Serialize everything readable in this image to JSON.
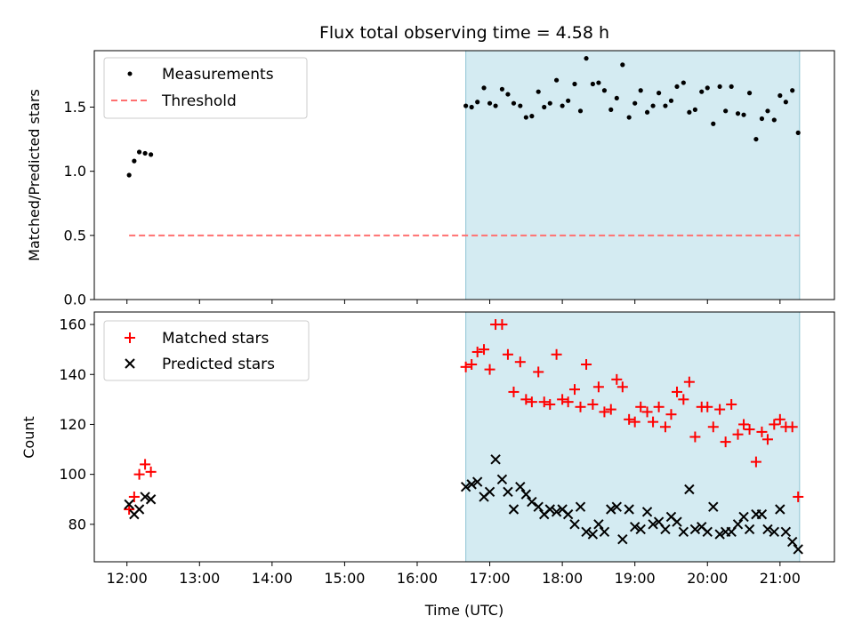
{
  "chart_data": {
    "title": "Flux total observing time = 4.58 h",
    "xlabel": "Time (UTC)",
    "x_ticks": [
      "12:00",
      "13:00",
      "14:00",
      "15:00",
      "16:00",
      "17:00",
      "18:00",
      "19:00",
      "20:00",
      "21:00"
    ],
    "xlim": [
      11.55,
      21.75
    ],
    "shaded_region": {
      "start": 16.67,
      "end": 21.27,
      "color": "#add8e6"
    },
    "top": {
      "type": "scatter",
      "ylabel": "Matched/Predicted stars",
      "ylim": [
        0,
        1.94
      ],
      "y_ticks": [
        "0.0",
        "0.5",
        "1.0",
        "1.5"
      ],
      "legend": {
        "position": "upper-left",
        "entries": [
          "Measurements",
          "Threshold"
        ]
      },
      "threshold": {
        "name": "Threshold",
        "value": 0.5,
        "x_range": [
          12.03,
          21.27
        ],
        "color": "#ff7070"
      },
      "series": [
        {
          "name": "Measurements",
          "color": "#000000",
          "x": [
            12.03,
            12.1,
            12.17,
            12.25,
            12.33,
            16.67,
            16.75,
            16.83,
            16.92,
            17.0,
            17.08,
            17.17,
            17.25,
            17.33,
            17.42,
            17.5,
            17.58,
            17.67,
            17.75,
            17.83,
            17.92,
            18.0,
            18.08,
            18.17,
            18.25,
            18.33,
            18.42,
            18.5,
            18.58,
            18.67,
            18.75,
            18.83,
            18.92,
            19.0,
            19.08,
            19.17,
            19.25,
            19.33,
            19.42,
            19.5,
            19.58,
            19.67,
            19.75,
            19.83,
            19.92,
            20.0,
            20.08,
            20.17,
            20.25,
            20.33,
            20.42,
            20.5,
            20.58,
            20.67,
            20.75,
            20.83,
            20.92,
            21.0,
            21.08,
            21.17,
            21.25
          ],
          "y": [
            0.97,
            1.08,
            1.15,
            1.14,
            1.13,
            1.51,
            1.5,
            1.54,
            1.65,
            1.53,
            1.51,
            1.64,
            1.6,
            1.53,
            1.51,
            1.42,
            1.43,
            1.62,
            1.5,
            1.53,
            1.71,
            1.51,
            1.55,
            1.68,
            1.47,
            1.88,
            1.68,
            1.69,
            1.63,
            1.48,
            1.57,
            1.83,
            1.42,
            1.53,
            1.63,
            1.46,
            1.51,
            1.61,
            1.51,
            1.55,
            1.66,
            1.69,
            1.46,
            1.48,
            1.62,
            1.65,
            1.37,
            1.66,
            1.47,
            1.66,
            1.45,
            1.44,
            1.61,
            1.25,
            1.41,
            1.47,
            1.4,
            1.59,
            1.54,
            1.63,
            1.3
          ]
        }
      ]
    },
    "bottom": {
      "type": "scatter",
      "ylabel": "Count",
      "ylim": [
        65,
        165
      ],
      "y_ticks": [
        "80",
        "100",
        "120",
        "140",
        "160"
      ],
      "legend": {
        "position": "upper-left",
        "entries": [
          "Matched stars",
          "Predicted stars"
        ]
      },
      "series": [
        {
          "name": "Matched stars",
          "color": "#ff0000",
          "marker": "plus",
          "x": [
            12.03,
            12.1,
            12.17,
            12.25,
            12.33,
            16.67,
            16.75,
            16.83,
            16.92,
            17.0,
            17.08,
            17.17,
            17.25,
            17.33,
            17.42,
            17.5,
            17.58,
            17.67,
            17.75,
            17.83,
            17.92,
            18.0,
            18.08,
            18.17,
            18.25,
            18.33,
            18.42,
            18.5,
            18.58,
            18.67,
            18.75,
            18.83,
            18.92,
            19.0,
            19.08,
            19.17,
            19.25,
            19.33,
            19.42,
            19.5,
            19.58,
            19.67,
            19.75,
            19.83,
            19.92,
            20.0,
            20.08,
            20.17,
            20.25,
            20.33,
            20.42,
            20.5,
            20.58,
            20.67,
            20.75,
            20.83,
            20.92,
            21.0,
            21.08,
            21.17,
            21.25
          ],
          "y": [
            86,
            91,
            100,
            104,
            101,
            143,
            144,
            149,
            150,
            142,
            160,
            160,
            148,
            133,
            145,
            130,
            129,
            141,
            129,
            128,
            148,
            130,
            129,
            134,
            127,
            144,
            128,
            135,
            125,
            126,
            138,
            135,
            122,
            121,
            127,
            125,
            121,
            127,
            119,
            124,
            133,
            130,
            137,
            115,
            127,
            127,
            119,
            126,
            113,
            128,
            116,
            120,
            118,
            105,
            117,
            114,
            120,
            122,
            119,
            119,
            91
          ]
        },
        {
          "name": "Predicted stars",
          "color": "#000000",
          "marker": "x",
          "x": [
            12.03,
            12.1,
            12.17,
            12.25,
            12.33,
            16.67,
            16.75,
            16.83,
            16.92,
            17.0,
            17.08,
            17.17,
            17.25,
            17.33,
            17.42,
            17.5,
            17.58,
            17.67,
            17.75,
            17.83,
            17.92,
            18.0,
            18.08,
            18.17,
            18.25,
            18.33,
            18.42,
            18.5,
            18.58,
            18.67,
            18.75,
            18.83,
            18.92,
            19.0,
            19.08,
            19.17,
            19.25,
            19.33,
            19.42,
            19.5,
            19.58,
            19.67,
            19.75,
            19.83,
            19.92,
            20.0,
            20.08,
            20.17,
            20.25,
            20.33,
            20.42,
            20.5,
            20.58,
            20.67,
            20.75,
            20.83,
            20.92,
            21.0,
            21.08,
            21.17,
            21.25
          ],
          "y": [
            88,
            84,
            86,
            91,
            90,
            95,
            96,
            97,
            91,
            93,
            106,
            98,
            93,
            86,
            95,
            92,
            89,
            87,
            84,
            86,
            85,
            86,
            84,
            80,
            87,
            77,
            76,
            80,
            77,
            86,
            87,
            74,
            86,
            79,
            78,
            85,
            80,
            81,
            78,
            83,
            81,
            77,
            94,
            78,
            79,
            77,
            87,
            76,
            77,
            77,
            80,
            83,
            78,
            84,
            84,
            78,
            77,
            86,
            77,
            73,
            70
          ]
        }
      ]
    }
  }
}
